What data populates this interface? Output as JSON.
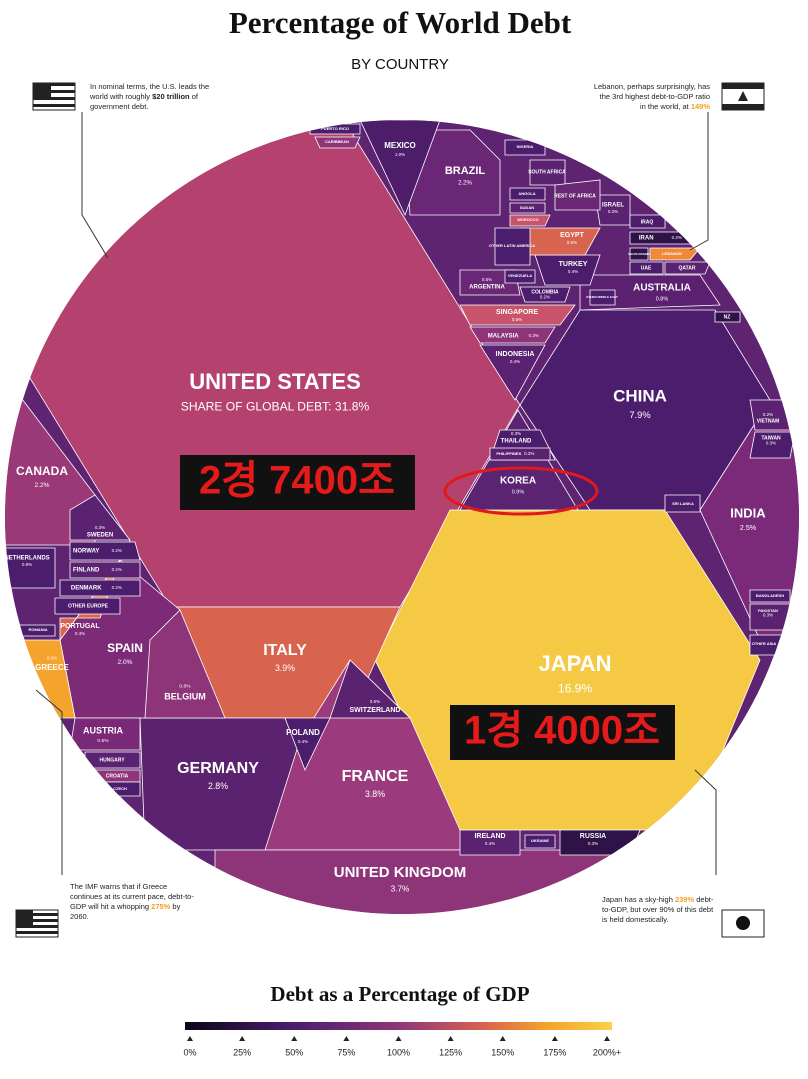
{
  "header": {
    "title": "Percentage of World Debt",
    "subtitle": "BY COUNTRY"
  },
  "cells": [
    {
      "label": "UNITED STATES",
      "value": "SHARE OF GLOBAL DEBT: 31.8%"
    },
    {
      "label": "CHINA",
      "value": "7.9%"
    },
    {
      "label": "JAPAN",
      "value": "16.9%"
    },
    {
      "label": "KOREA",
      "value": "0.9%"
    },
    {
      "label": "ITALY",
      "value": "3.9%"
    },
    {
      "label": "FRANCE",
      "value": "3.8%"
    },
    {
      "label": "GERMANY",
      "value": "2.8%"
    },
    {
      "label": "UNITED KINGDOM",
      "value": "3.7%"
    },
    {
      "label": "CANADA",
      "value": "2.2%"
    },
    {
      "label": "INDIA",
      "value": "2.5%"
    },
    {
      "label": "SPAIN",
      "value": "2.0%"
    },
    {
      "label": "BRAZIL",
      "value": "2.2%"
    },
    {
      "label": "MEXICO",
      "value": "1.0%"
    },
    {
      "label": "AUSTRALIA",
      "value": "0.8%"
    },
    {
      "label": "BELGIUM",
      "value": "0.8%"
    },
    {
      "label": "SWITZERLAND",
      "value": "0.5%"
    },
    {
      "label": "POLAND",
      "value": "0.4%"
    },
    {
      "label": "AUSTRIA",
      "value": "0.5%"
    },
    {
      "label": "GREECE",
      "value": "0.6%"
    },
    {
      "label": "PORTUGAL",
      "value": "0.4%"
    },
    {
      "label": "NETHERLANDS",
      "value": "0.8%"
    },
    {
      "label": "SWEDEN",
      "value": "0.3%"
    },
    {
      "label": "NORWAY",
      "value": "0.2%"
    },
    {
      "label": "FINLAND",
      "value": "0.2%"
    },
    {
      "label": "DENMARK",
      "value": "0.2%"
    },
    {
      "label": "ARGENTINA",
      "value": "0.5%"
    },
    {
      "label": "TURKEY",
      "value": "0.4%"
    },
    {
      "label": "EGYPT",
      "value": "0.5%"
    },
    {
      "label": "SINGAPORE",
      "value": "0.5%"
    },
    {
      "label": "MALAYSIA",
      "value": "0.3%"
    },
    {
      "label": "INDONESIA",
      "value": "0.4%"
    },
    {
      "label": "THAILAND",
      "value": "0.3%"
    },
    {
      "label": "IRELAND",
      "value": "0.4%"
    },
    {
      "label": "RUSSIA",
      "value": "0.3%"
    },
    {
      "label": "ISRAEL",
      "value": "0.3%"
    },
    {
      "label": "IRAN",
      "value": "0.2%"
    },
    {
      "label": "VIETNAM",
      "value": "0.2%"
    },
    {
      "label": "TAIWAN",
      "value": "0.3%"
    },
    {
      "label": "LEBANON"
    },
    {
      "label": "QATAR"
    },
    {
      "label": "UAE"
    },
    {
      "label": "IRAQ"
    },
    {
      "label": "SOUTH AFRICA"
    },
    {
      "label": "REST OF AFRICA"
    },
    {
      "label": "NIGERIA"
    },
    {
      "label": "ANGOLA"
    },
    {
      "label": "SUDAN"
    },
    {
      "label": "MOROCCO"
    },
    {
      "label": "OTHER LATIN AMERICA"
    },
    {
      "label": "COLOMBIA",
      "value": "0.2%"
    },
    {
      "label": "VENEZUELA"
    },
    {
      "label": "OTHER EUROPE"
    },
    {
      "label": "HUNGARY"
    },
    {
      "label": "CROATIA"
    },
    {
      "label": "UKRAINE"
    },
    {
      "label": "ROMANIA"
    },
    {
      "label": "PUERTO RICO"
    },
    {
      "label": "CARIBBEAN"
    },
    {
      "label": "SAUDI ARABIA"
    },
    {
      "label": "OTHER MIDDLE EAST"
    },
    {
      "label": "PHILIPPINES",
      "value": "0.3%"
    },
    {
      "label": "NZ"
    },
    {
      "label": "OTHER ASIA"
    },
    {
      "label": "BANGLADESH"
    },
    {
      "label": "PAKISTAN",
      "value": "0.3%"
    },
    {
      "label": "SRI LANKA"
    },
    {
      "label": "CZECH"
    }
  ],
  "annotations": [
    "2경 7400조",
    "1경 4000조"
  ],
  "notes": {
    "us": [
      "In nominal terms, the U.S. leads the world with roughly ",
      "$20 trillion",
      " of government debt."
    ],
    "lebanon": [
      "Lebanon, perhaps surprisingly, has the 3rd highest debt-to-GDP ratio in the world, at ",
      "149%"
    ],
    "greece": [
      "The IMF warns that if Greece continues at its current pace, debt-to-GDP will hit a whopping ",
      "275%",
      " by 2060."
    ],
    "japan": [
      "Japan has a sky-high ",
      "239%",
      " debt-to-GDP, but over 90% of this debt is held domestically."
    ]
  },
  "legend": {
    "title": "Debt as a Percentage of GDP",
    "ticks": [
      "0%",
      "25%",
      "50%",
      "75%",
      "100%",
      "125%",
      "150%",
      "175%",
      "200%+"
    ]
  }
}
